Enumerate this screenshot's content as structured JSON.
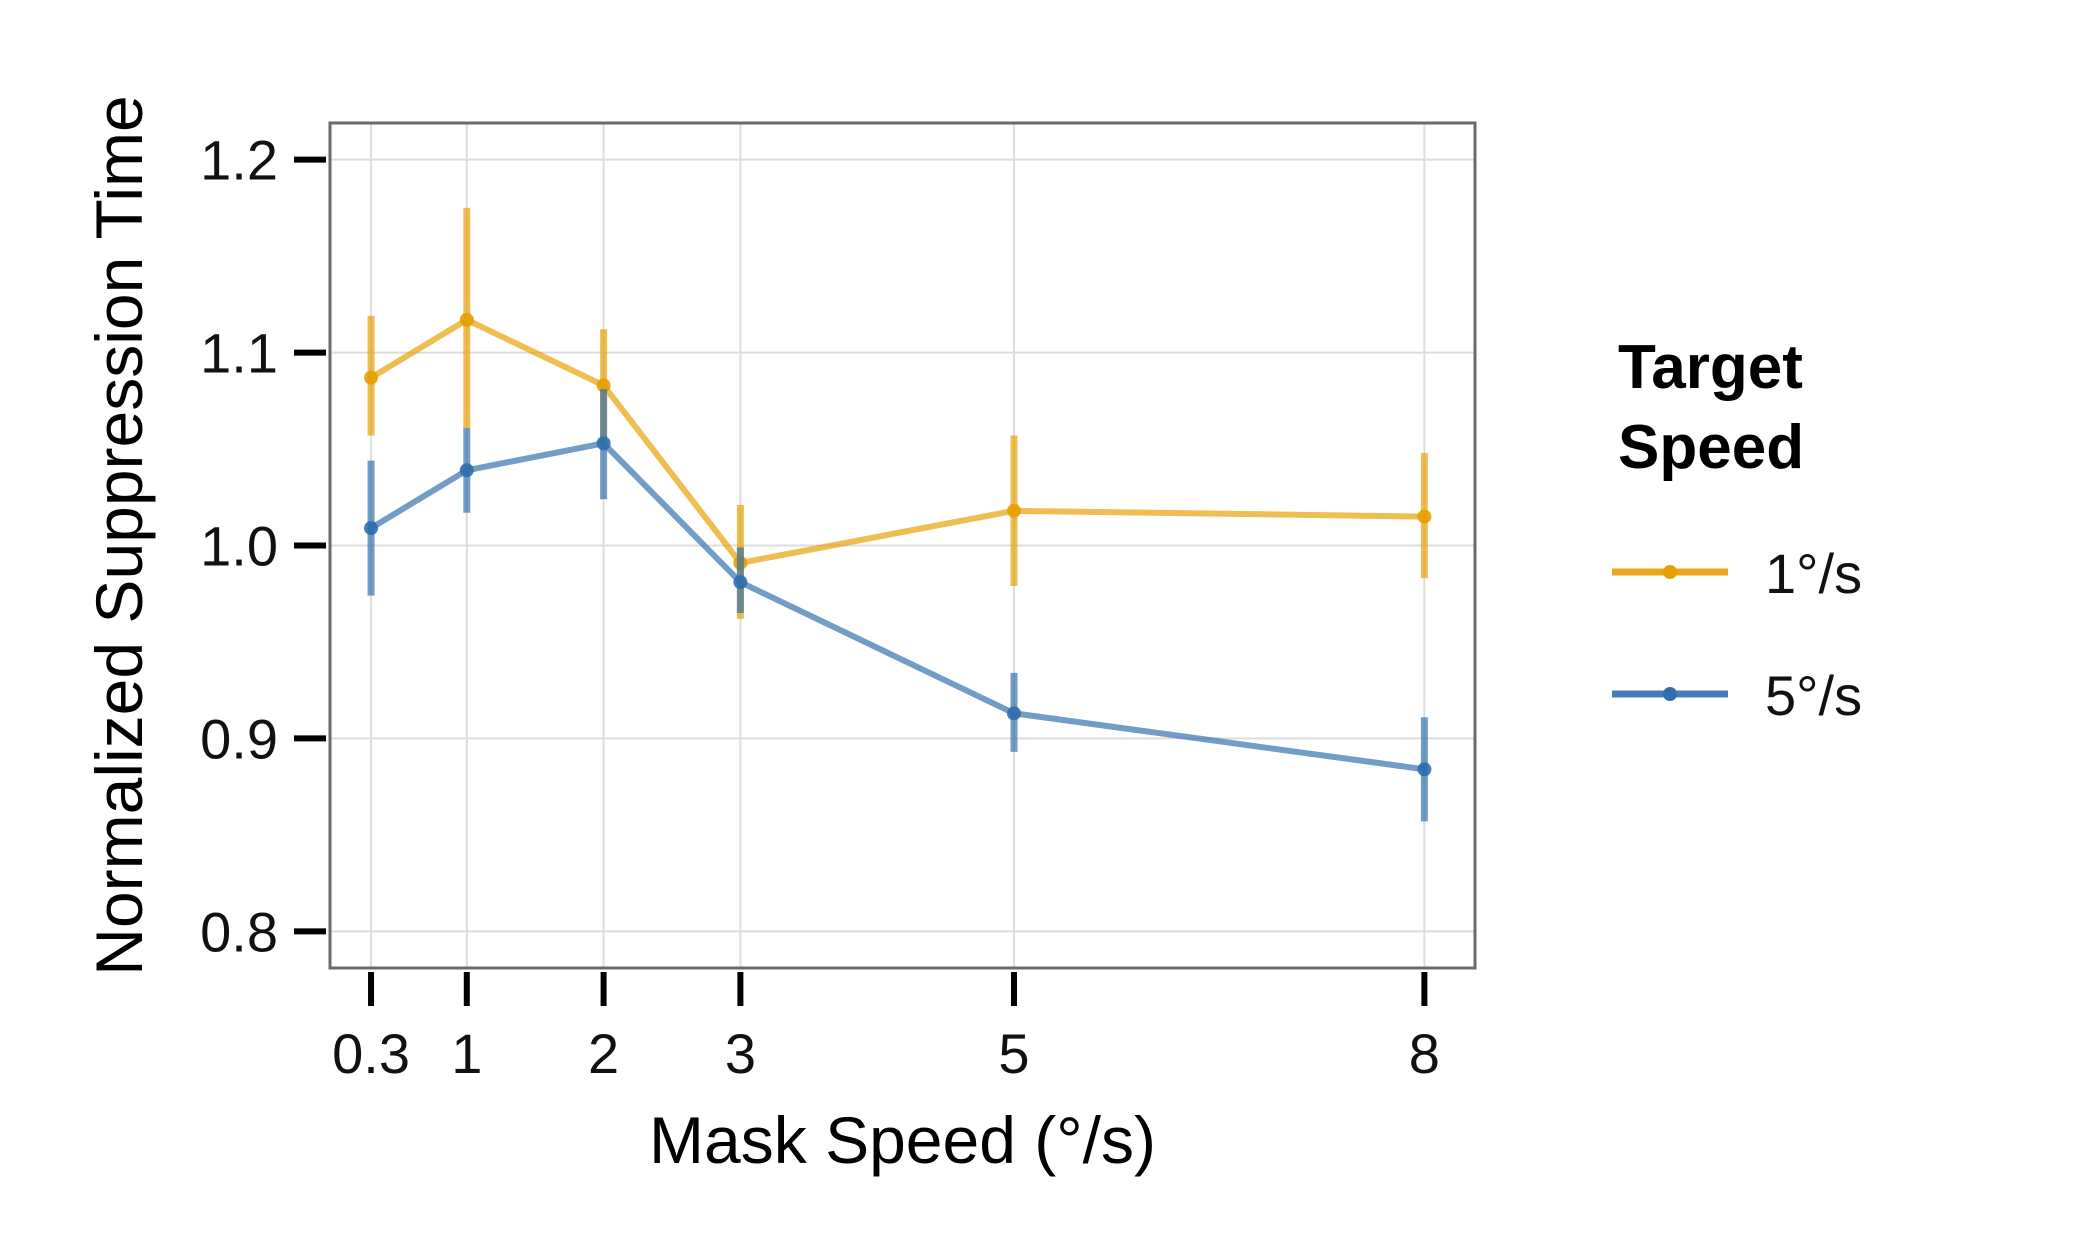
{
  "chart_data": {
    "type": "line",
    "xlabel": "Mask Speed (°/s)",
    "ylabel": "Normalized Suppression Time",
    "x": [
      0.3,
      1,
      2,
      3,
      5,
      8
    ],
    "x_tick_labels": [
      "0.3",
      "1",
      "2",
      "3",
      "5",
      "8"
    ],
    "y_ticks": [
      0.8,
      0.9,
      1.0,
      1.1,
      1.2
    ],
    "y_tick_labels": [
      "0.8",
      "0.9",
      "1.0",
      "1.1",
      "1.2"
    ],
    "xlim": [
      0.0,
      8.37
    ],
    "ylim": [
      0.781,
      1.219
    ],
    "grid": true,
    "legend": {
      "title_lines": [
        "Target",
        "Speed"
      ],
      "placement": "right"
    },
    "series": [
      {
        "name": "1°/s",
        "color": "#E69F00",
        "values": [
          1.087,
          1.117,
          1.083,
          0.991,
          1.018,
          1.015
        ],
        "error_low": [
          1.057,
          1.061,
          1.055,
          0.962,
          0.979,
          0.983
        ],
        "error_high": [
          1.119,
          1.175,
          1.112,
          1.021,
          1.057,
          1.048
        ]
      },
      {
        "name": "5°/s",
        "color": "#2F6FAD",
        "values": [
          1.009,
          1.039,
          1.053,
          0.981,
          0.913,
          0.884
        ],
        "error_low": [
          0.974,
          1.017,
          1.024,
          0.965,
          0.893,
          0.857
        ],
        "error_high": [
          1.044,
          1.061,
          1.081,
          0.999,
          0.934,
          0.911
        ]
      }
    ]
  }
}
